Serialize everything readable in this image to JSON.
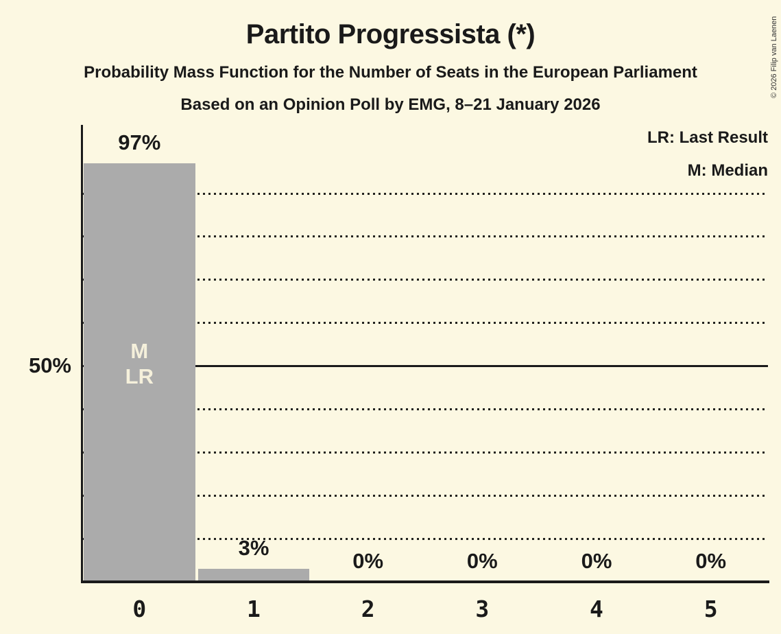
{
  "copyright": "© 2026 Filip van Laenen",
  "legend": {
    "last_result": "LR: Last Result",
    "median": "M: Median"
  },
  "colors": {
    "background": "#FCF8E2",
    "bar": "#ABABAB",
    "text": "#1A1A1A",
    "bar_annotation_text": "#F5F0DB",
    "gridline": "#22221E"
  },
  "chart_data": {
    "type": "bar",
    "title": "Partito Progressista (*)",
    "subtitle": "Probability Mass Function for the Number of Seats in the European Parliament",
    "poll_line": "Based on an Opinion Poll by EMG, 8–21 January 2026",
    "xlabel": "",
    "ylabel": "",
    "categories": [
      "0",
      "1",
      "2",
      "3",
      "4",
      "5"
    ],
    "values": [
      97,
      3,
      0,
      0,
      0,
      0
    ],
    "bar_value_labels": [
      "97%",
      "3%",
      "0%",
      "0%",
      "0%",
      "0%"
    ],
    "y_axis_label": "50%",
    "ylim": [
      0,
      106
    ],
    "gridlines_pct": [
      10,
      20,
      30,
      40,
      50,
      60,
      70,
      80,
      90
    ],
    "solid_gridline_pct": 50,
    "grid": "dotted horizontal lines every 10%, solid line at 50%",
    "legend_position": "top-right",
    "median_bar_index": 0,
    "last_result_bar_index": 0,
    "bar_annotations": [
      {
        "bar": 0,
        "lines": [
          "M",
          "LR"
        ]
      }
    ]
  }
}
